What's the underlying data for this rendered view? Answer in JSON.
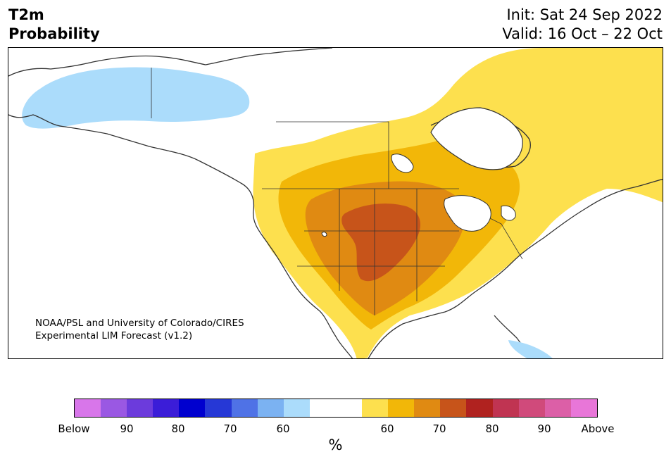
{
  "header": {
    "title_line1": "T2m",
    "title_line2": "Probability",
    "init": "Init: Sat 24 Sep 2022",
    "valid": "Valid: 16 Oct – 22 Oct"
  },
  "map": {
    "credit_line1": "NOAA/PSL and University of Colorado/CIRES",
    "credit_line2": "Experimental LIM Forecast (v1.2)",
    "colors": {
      "land": "#ffffff",
      "coast": "#333333",
      "below_60": "#abdcfb",
      "above_55": "#fde04e",
      "above_60": "#f2b708",
      "above_65": "#e08a12",
      "above_70": "#c7541a"
    }
  },
  "colorbar": {
    "unit": "%",
    "colors": [
      "#d876ea",
      "#9a58e3",
      "#6c3bdc",
      "#3b1dd8",
      "#0000cf",
      "#2638d6",
      "#4f72e6",
      "#7bb2f2",
      "#abdcfb",
      "#ffffff",
      "#ffffff",
      "#fde04e",
      "#f2b708",
      "#e08a12",
      "#c7541a",
      "#b0221f",
      "#c03452",
      "#d04a7b",
      "#dc5fa7",
      "#e876d8"
    ],
    "tick_labels": [
      "Below",
      "90",
      "80",
      "70",
      "60",
      "60",
      "70",
      "80",
      "90",
      "Above"
    ]
  }
}
